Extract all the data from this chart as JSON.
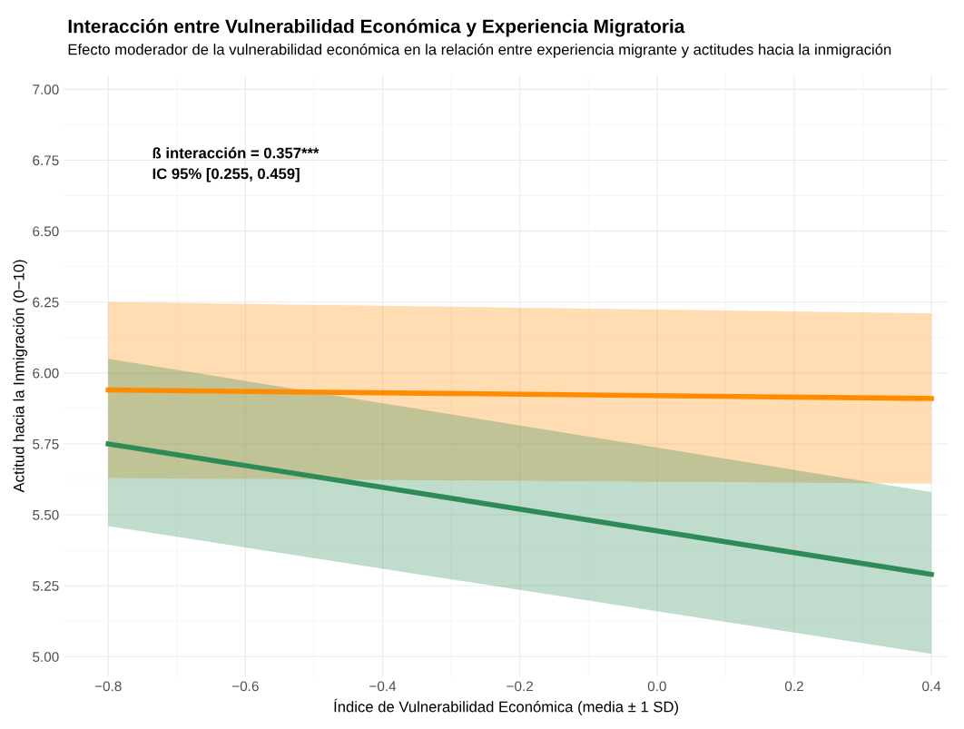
{
  "chart_data": {
    "type": "line",
    "title": "Interacción entre Vulnerabilidad Económica y Experiencia Migratoria",
    "subtitle": "Efecto moderador de la vulnerabilidad económica en la relación entre experiencia migrante y actitudes hacia la inmigración",
    "xlabel": "Índice de Vulnerabilidad Económica (media ± 1 SD)",
    "ylabel": "Actitud hacia la Inmigración (0−10)",
    "annotations": [
      "ß interacción = 0.357***\nIC 95% [0.255, 0.459]"
    ],
    "x": [
      -0.8,
      0.4
    ],
    "series": [
      {
        "color": "#ff8c00",
        "values": [
          5.94,
          5.91
        ],
        "lower": [
          5.63,
          5.61
        ],
        "upper": [
          6.25,
          6.21
        ]
      },
      {
        "color": "#2e8b57",
        "values": [
          5.75,
          5.29
        ],
        "lower": [
          5.46,
          5.01
        ],
        "upper": [
          6.05,
          5.58
        ]
      }
    ],
    "xlim": [
      -0.865,
      0.425
    ],
    "ylim": [
      4.93,
      7.05
    ],
    "xticks": [
      {
        "value": -0.8,
        "label": "−0.8"
      },
      {
        "value": -0.6,
        "label": "−0.6"
      },
      {
        "value": -0.4,
        "label": "−0.4"
      },
      {
        "value": -0.2,
        "label": "−0.2"
      },
      {
        "value": 0.0,
        "label": "0.0"
      },
      {
        "value": 0.2,
        "label": "0.2"
      },
      {
        "value": 0.4,
        "label": "0.4"
      }
    ],
    "yticks": [
      {
        "value": 5.0,
        "label": "5.00"
      },
      {
        "value": 5.25,
        "label": "5.25"
      },
      {
        "value": 5.5,
        "label": "5.50"
      },
      {
        "value": 5.75,
        "label": "5.75"
      },
      {
        "value": 6.0,
        "label": "6.00"
      },
      {
        "value": 6.25,
        "label": "6.25"
      },
      {
        "value": 6.5,
        "label": "6.50"
      },
      {
        "value": 6.75,
        "label": "6.75"
      },
      {
        "value": 7.0,
        "label": "7.00"
      }
    ],
    "grid": true,
    "legend": false,
    "marker": "none",
    "line_style": "solid"
  }
}
